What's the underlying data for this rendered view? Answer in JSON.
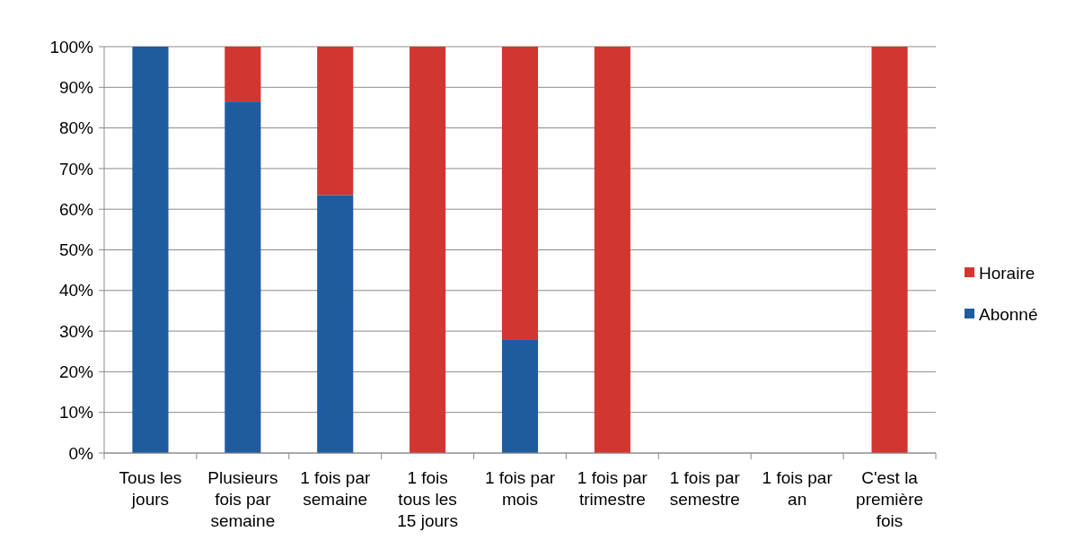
{
  "chart_data": {
    "type": "bar",
    "stacked": true,
    "categories": [
      "Tous les jours",
      "Plusieurs fois par semaine",
      "1 fois par semaine",
      "1 fois tous les 15 jours",
      "1 fois par mois",
      "1 fois par trimestre",
      "1 fois par semestre",
      "1 fois par an",
      "C'est la première fois"
    ],
    "series": [
      {
        "name": "Abonné",
        "color": "#1f5c9e",
        "values": [
          100,
          86.5,
          63.5,
          0,
          28,
          0,
          0,
          0,
          0
        ]
      },
      {
        "name": "Horaire",
        "color": "#d23630",
        "values": [
          0,
          13.5,
          36.5,
          100,
          72,
          100,
          0,
          0,
          100
        ]
      }
    ],
    "ylim": [
      0,
      100
    ],
    "yticks": [
      {
        "value": 0,
        "label": "0%"
      },
      {
        "value": 10,
        "label": "10%"
      },
      {
        "value": 20,
        "label": "20%"
      },
      {
        "value": 30,
        "label": "30%"
      },
      {
        "value": 40,
        "label": "40%"
      },
      {
        "value": 50,
        "label": "50%"
      },
      {
        "value": 60,
        "label": "60%"
      },
      {
        "value": 70,
        "label": "70%"
      },
      {
        "value": 80,
        "label": "80%"
      },
      {
        "value": 90,
        "label": "90%"
      },
      {
        "value": 100,
        "label": "100%"
      }
    ],
    "grid": "y",
    "legend": "right"
  }
}
